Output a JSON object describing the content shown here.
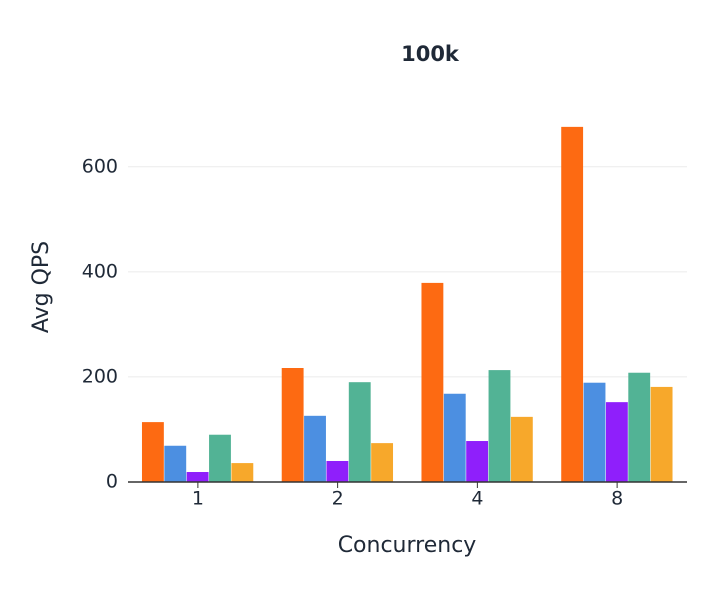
{
  "chart_data": {
    "type": "bar",
    "title": "100k",
    "x_label": "Concurrency",
    "y_label": "Avg QPS",
    "categories": [
      "1",
      "2",
      "4",
      "8"
    ],
    "series": [
      {
        "color": "#fd6a12",
        "values": [
          114,
          217,
          379,
          676
        ]
      },
      {
        "color": "#4c8fe1",
        "values": [
          69,
          126,
          168,
          189
        ]
      },
      {
        "color": "#8f1ffb",
        "values": [
          19,
          40,
          78,
          152
        ]
      },
      {
        "color": "#52b395",
        "values": [
          90,
          190,
          213,
          208
        ]
      },
      {
        "color": "#f7a82b",
        "values": [
          36,
          74,
          124,
          181
        ]
      }
    ],
    "ylim": [
      0,
      750
    ],
    "yticks": [
      0,
      200,
      400,
      600
    ],
    "grid": true
  }
}
